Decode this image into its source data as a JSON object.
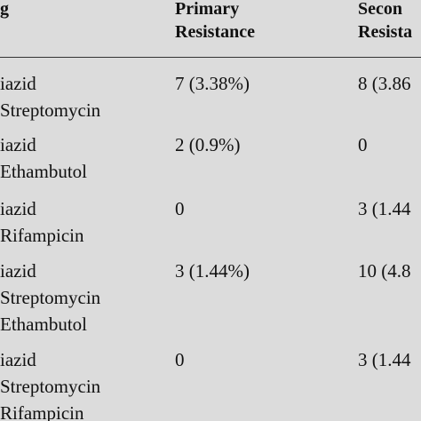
{
  "table": {
    "header": [
      [
        "g"
      ],
      [
        "Primary",
        "Resistance"
      ],
      [
        "Secon",
        "Resista"
      ]
    ],
    "rows": [
      [
        [
          "iazid",
          "Streptomycin"
        ],
        [
          "7 (3.38%)"
        ],
        [
          "8 (3.86"
        ]
      ],
      [
        [
          "iazid",
          "Ethambutol"
        ],
        [
          "2 (0.9%)"
        ],
        [
          "0"
        ]
      ],
      [
        [
          "iazid",
          "Rifampicin"
        ],
        [
          "0"
        ],
        [
          "3 (1.44"
        ]
      ],
      [
        [
          "iazid",
          "Streptomycin",
          "Ethambutol"
        ],
        [
          "3 (1.44%)"
        ],
        [
          "10 (4.8"
        ]
      ],
      [
        [
          "iazid",
          "Streptomycin",
          "Rifampicin"
        ],
        [
          "0"
        ],
        [
          "3 (1.44"
        ]
      ]
    ]
  }
}
